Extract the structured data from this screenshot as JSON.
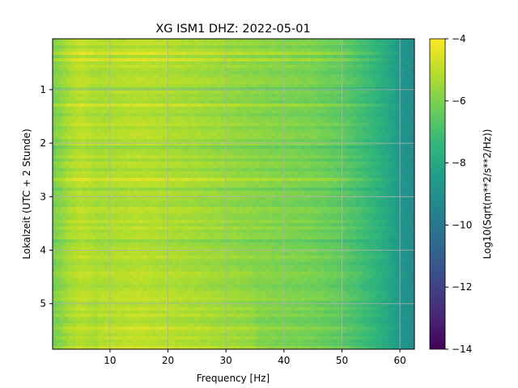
{
  "chart_data": {
    "type": "heatmap",
    "title": "XG ISM1  DHZ: 2022-05-01",
    "xlabel": "Frequency [Hz]",
    "ylabel": "Lokalzeit (UTC + 2 Stunde)",
    "xlim": [
      0.1,
      62.5
    ],
    "ylim": [
      5.85,
      0.05
    ],
    "xticks": [
      10,
      20,
      30,
      40,
      50,
      60
    ],
    "yticks": [
      1,
      2,
      3,
      4,
      5
    ],
    "grid": true,
    "colorbar": {
      "label": "Log10(Sqrt(m**2/s**2/Hz))",
      "range": [
        -14,
        -4
      ],
      "ticks": [
        -4,
        -6,
        -8,
        -10,
        -12,
        -14
      ],
      "tick_labels": [
        "−4",
        "−6",
        "−8",
        "−10",
        "−12",
        "−14"
      ],
      "colormap": "viridis"
    },
    "spectrum_profile": {
      "frequency_hz": [
        0.5,
        3,
        5,
        8,
        15,
        25,
        35,
        45,
        50,
        55,
        58,
        60,
        62.5
      ],
      "log10_amplitude": [
        -6.0,
        -5.3,
        -5.0,
        -5.3,
        -5.1,
        -5.4,
        -5.8,
        -6.1,
        -6.5,
        -7.3,
        -8.0,
        -8.7,
        -9.2
      ]
    }
  }
}
